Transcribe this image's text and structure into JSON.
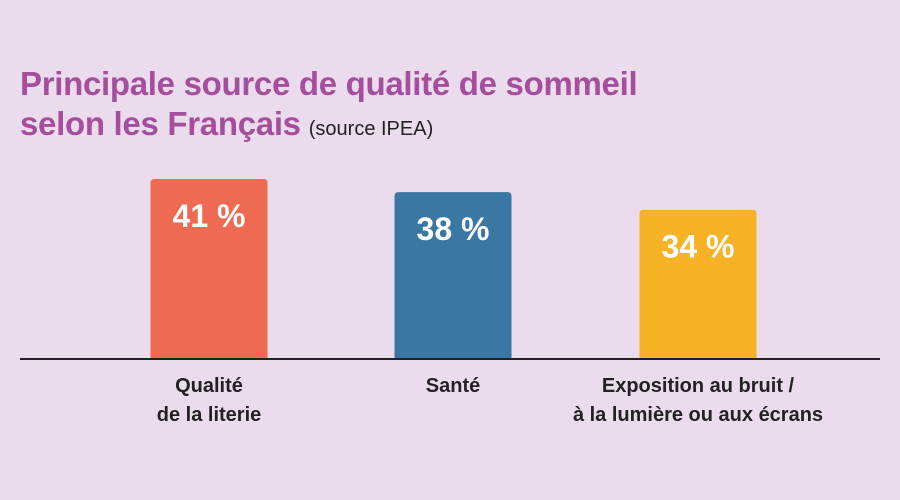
{
  "title": {
    "line1": "Principale source de qualité de sommeil",
    "line2": "selon les Français",
    "source": "(source IPEA)"
  },
  "colors": {
    "background": "#eadcec",
    "title": "#a44e9c",
    "axis": "#222222"
  },
  "chart_data": {
    "type": "bar",
    "title": "Principale source de qualité de sommeil selon les Français",
    "subtitle": "(source IPEA)",
    "xlabel": "",
    "ylabel": "",
    "ylim": [
      0,
      41
    ],
    "grid": false,
    "categories": [
      [
        "Qualité",
        "de la literie"
      ],
      [
        "Santé"
      ],
      [
        "Exposition au bruit /",
        "à la lumière ou aux écrans"
      ]
    ],
    "values": [
      41,
      38,
      34
    ],
    "value_labels": [
      "41 %",
      "38 %",
      "34 %"
    ],
    "colors": [
      "#ee6a53",
      "#3a77a3",
      "#f7b226"
    ]
  }
}
